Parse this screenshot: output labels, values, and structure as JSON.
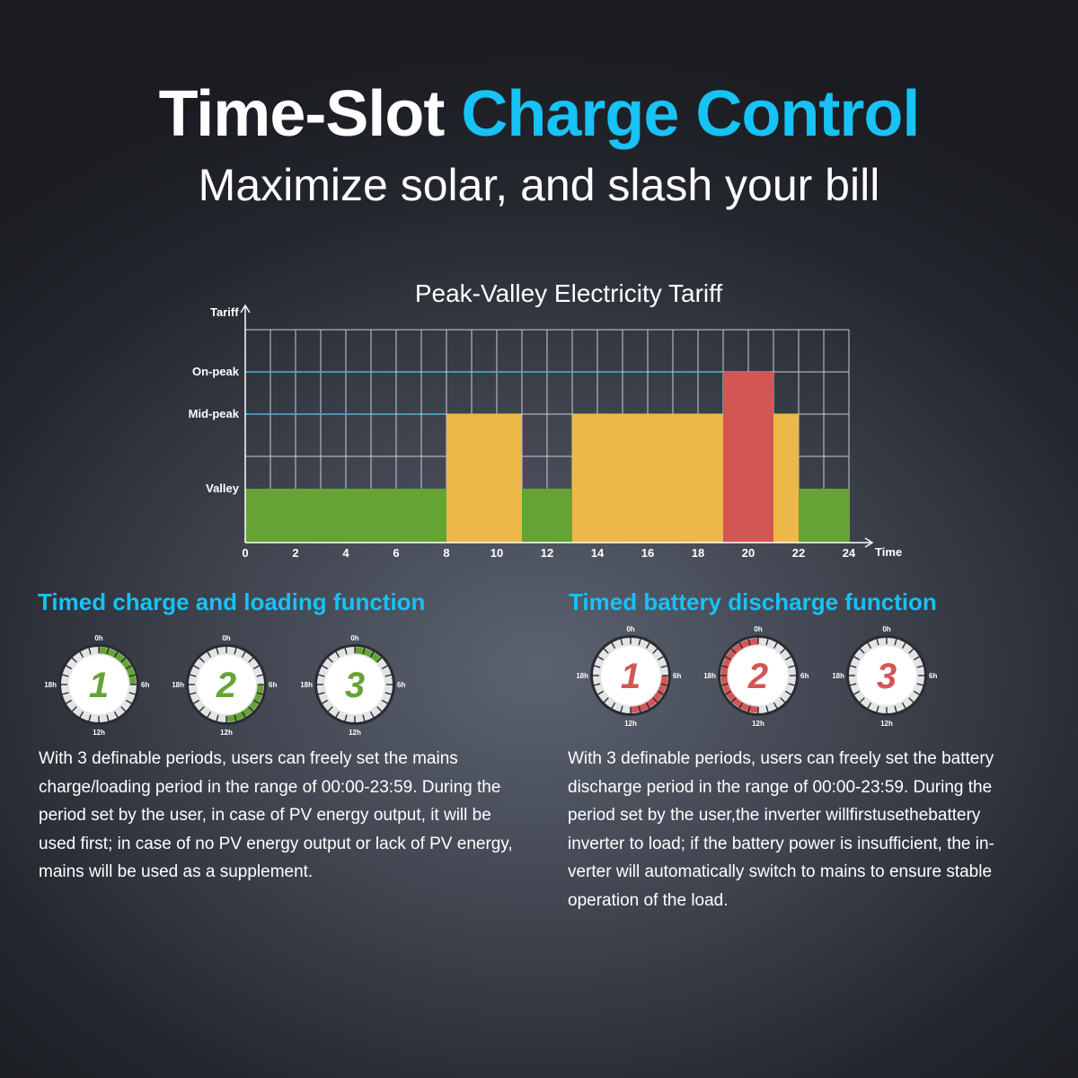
{
  "header": {
    "title_part1": "Time-Slot",
    "title_part2": "Charge Control",
    "subtitle": "Maximize solar, and slash your bill"
  },
  "colors": {
    "accent": "#17c2f5",
    "valley": "#66a335",
    "mid_peak": "#ecb84a",
    "on_peak": "#d35655",
    "charge_clock": "#66a335",
    "discharge_clock": "#d35655"
  },
  "chart_data": {
    "type": "bar",
    "title": "Peak-Valley Electricity Tariff",
    "xlabel": "Time",
    "ylabel": "Tariff",
    "xlim": [
      0,
      24
    ],
    "x_ticks": [
      "0",
      "2",
      "4",
      "6",
      "8",
      "10",
      "12",
      "14",
      "16",
      "18",
      "20",
      "22",
      "24"
    ],
    "levels": [
      "Valley",
      "Mid-peak",
      "On-peak"
    ],
    "segments": [
      {
        "start": 0,
        "end": 8,
        "level": "Valley"
      },
      {
        "start": 8,
        "end": 11,
        "level": "Mid-peak"
      },
      {
        "start": 11,
        "end": 13,
        "level": "Valley"
      },
      {
        "start": 13,
        "end": 19,
        "level": "Mid-peak"
      },
      {
        "start": 19,
        "end": 21,
        "level": "On-peak"
      },
      {
        "start": 21,
        "end": 22,
        "level": "Mid-peak"
      },
      {
        "start": 22,
        "end": 24,
        "level": "Valley"
      }
    ],
    "grid": true
  },
  "charge_section": {
    "heading": "Timed charge and loading function",
    "clocks": [
      {
        "number": "1",
        "arc_start_h": 0,
        "arc_end_h": 6
      },
      {
        "number": "2",
        "arc_start_h": 6,
        "arc_end_h": 12
      },
      {
        "number": "3",
        "arc_start_h": 0,
        "arc_end_h": 3
      }
    ],
    "text_lines": [
      "With 3 definable periods, users can freely set the mains",
      "charge/loading period in the range of 00:00-23:59. During the",
      "period set by the user, in case of PV energy output, it will be",
      "used first; in case of no PV energy output or lack of PV energy,",
      "mains will be used as a supplement."
    ]
  },
  "discharge_section": {
    "heading": "Timed battery discharge function",
    "clocks": [
      {
        "number": "1",
        "arc_start_h": 6,
        "arc_end_h": 12
      },
      {
        "number": "2",
        "arc_start_h": 12,
        "arc_end_h": 24
      },
      {
        "number": "3",
        "arc_start_h": 0,
        "arc_end_h": 0
      }
    ],
    "text_lines": [
      "With 3 definable periods, users can freely set the battery",
      "discharge period in the range of 00:00-23:59. During the",
      "period set by the user,the inverter willfirstusethebattery",
      "inverter to load; if the battery power is insufficient, the in-",
      "verter will automatically switch to mains to ensure stable",
      "operation of the load."
    ]
  },
  "clock_labels": {
    "top": "0h",
    "right": "6h",
    "bottom": "12h",
    "left": "18h"
  }
}
